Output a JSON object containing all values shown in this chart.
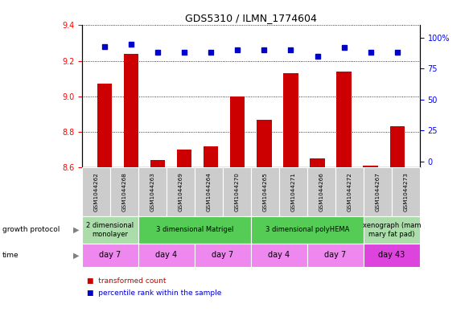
{
  "title": "GDS5310 / ILMN_1774604",
  "samples": [
    "GSM1044262",
    "GSM1044268",
    "GSM1044263",
    "GSM1044269",
    "GSM1044264",
    "GSM1044270",
    "GSM1044265",
    "GSM1044271",
    "GSM1044266",
    "GSM1044272",
    "GSM1044267",
    "GSM1044273"
  ],
  "bar_values": [
    9.07,
    9.24,
    8.64,
    8.7,
    8.72,
    9.0,
    8.87,
    9.13,
    8.65,
    9.14,
    8.61,
    8.83
  ],
  "percentile_values": [
    93,
    95,
    88,
    88,
    88,
    90,
    90,
    90,
    85,
    92,
    88,
    88
  ],
  "ylim_left": [
    8.6,
    9.4
  ],
  "yticks_left": [
    8.6,
    8.8,
    9.0,
    9.2,
    9.4
  ],
  "yticks_right": [
    0,
    25,
    50,
    75,
    100
  ],
  "bar_color": "#cc0000",
  "dot_color": "#0000cc",
  "groups_gp": [
    {
      "label": "2 dimensional\nmonolayer",
      "start": 0,
      "end": 2,
      "color": "#aaddaa"
    },
    {
      "label": "3 dimensional Matrigel",
      "start": 2,
      "end": 6,
      "color": "#55cc55"
    },
    {
      "label": "3 dimensional polyHEMA",
      "start": 6,
      "end": 10,
      "color": "#55cc55"
    },
    {
      "label": "xenograph (mam\nmary fat pad)",
      "start": 10,
      "end": 12,
      "color": "#aaddaa"
    }
  ],
  "groups_time": [
    {
      "label": "day 7",
      "start": 0,
      "end": 2,
      "color": "#ee88ee"
    },
    {
      "label": "day 4",
      "start": 2,
      "end": 4,
      "color": "#ee88ee"
    },
    {
      "label": "day 7",
      "start": 4,
      "end": 6,
      "color": "#ee88ee"
    },
    {
      "label": "day 4",
      "start": 6,
      "end": 8,
      "color": "#ee88ee"
    },
    {
      "label": "day 7",
      "start": 8,
      "end": 10,
      "color": "#ee88ee"
    },
    {
      "label": "day 43",
      "start": 10,
      "end": 12,
      "color": "#dd44dd"
    }
  ],
  "sample_box_color": "#cccccc",
  "background_color": "#ffffff",
  "legend_items": [
    {
      "label": "transformed count",
      "color": "#cc0000"
    },
    {
      "label": "percentile rank within the sample",
      "color": "#0000cc"
    }
  ]
}
